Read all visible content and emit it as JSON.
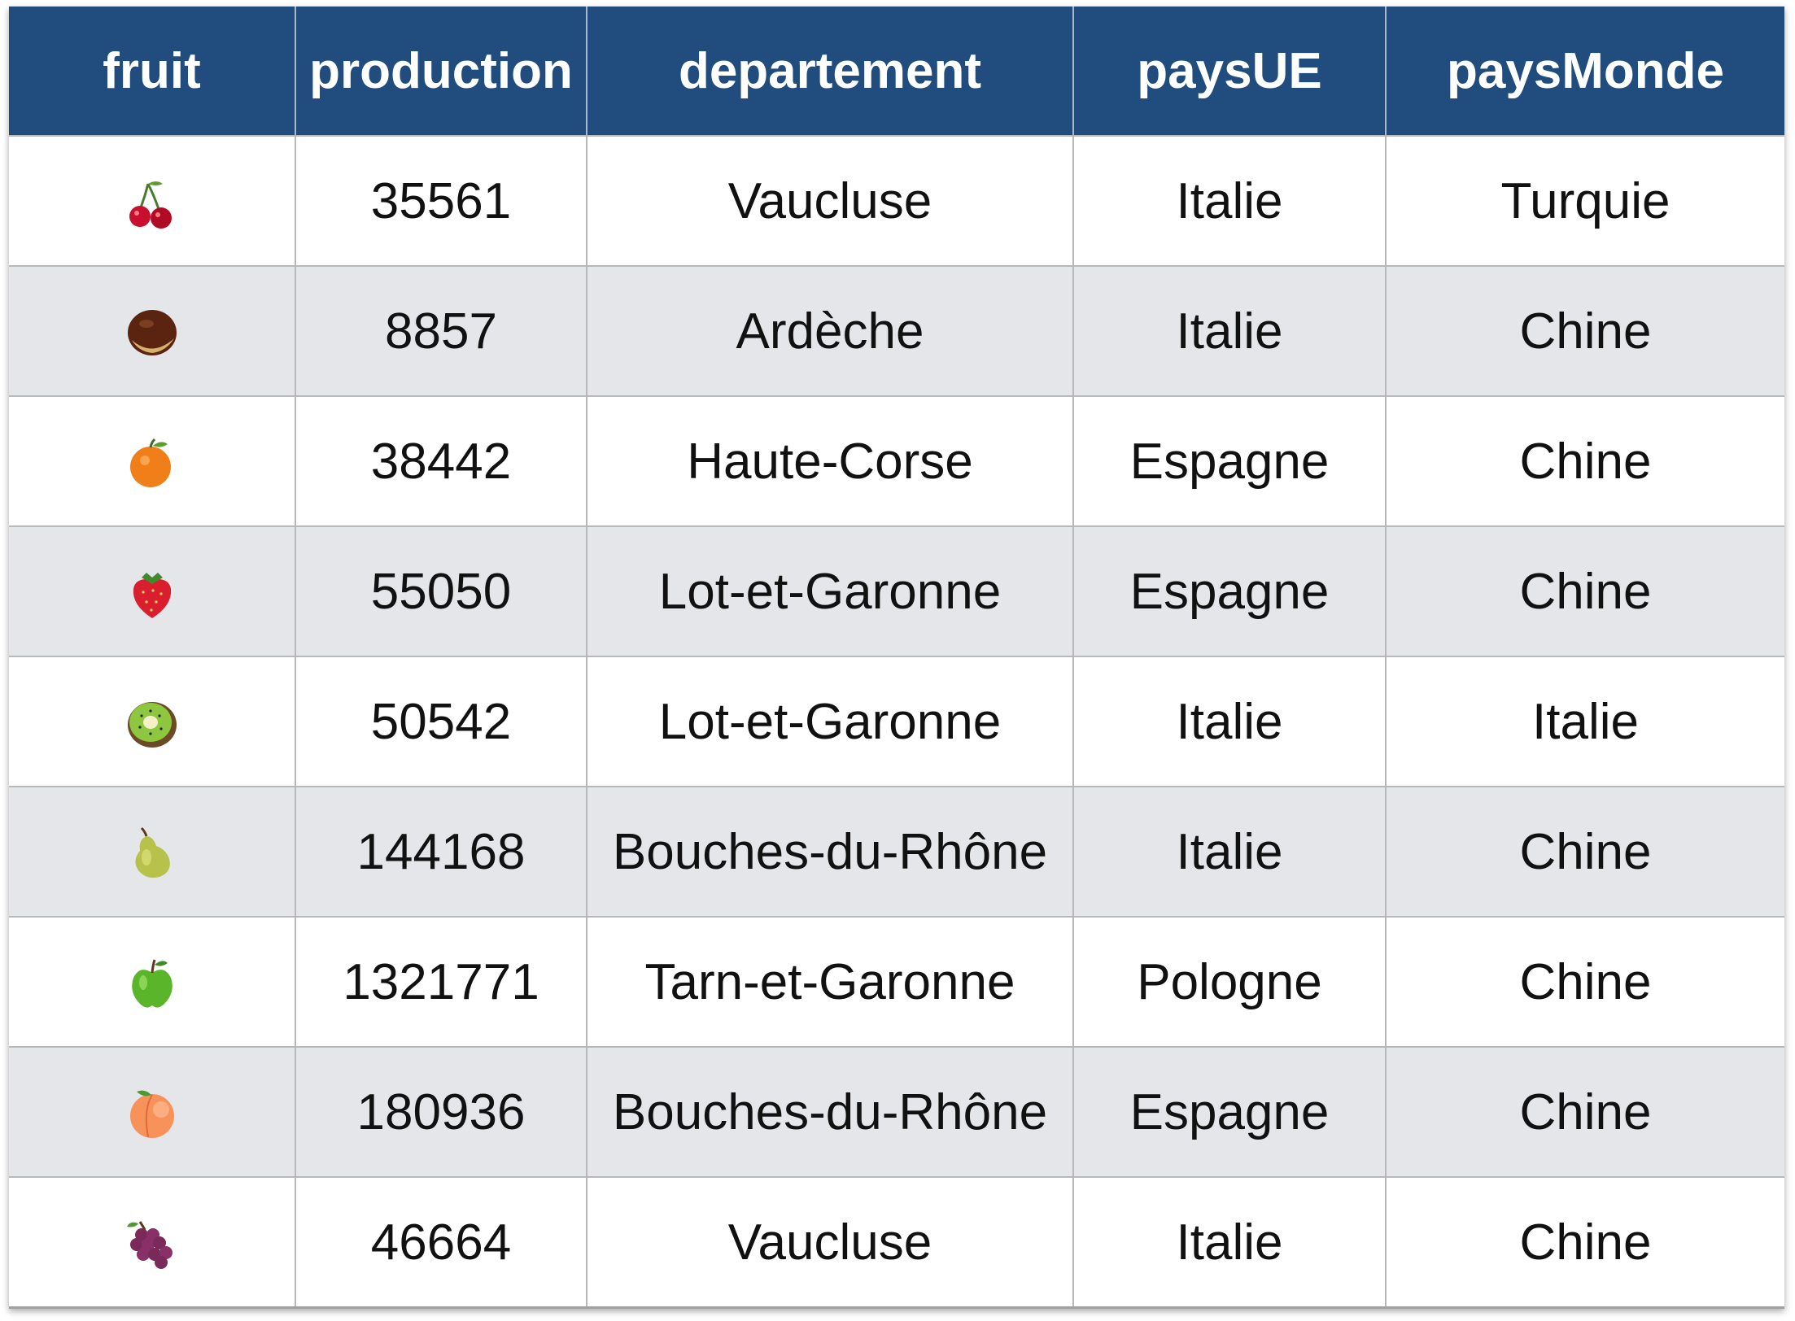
{
  "table": {
    "headers": [
      "fruit",
      "production",
      "departement",
      "paysUE",
      "paysMonde"
    ],
    "rows": [
      {
        "fruit": "cherry-icon",
        "production": "35561",
        "departement": "Vaucluse",
        "paysUE": "Italie",
        "paysMonde": "Turquie"
      },
      {
        "fruit": "chestnut-icon",
        "production": "8857",
        "departement": "Ardèche",
        "paysUE": "Italie",
        "paysMonde": "Chine"
      },
      {
        "fruit": "orange-icon",
        "production": "38442",
        "departement": "Haute-Corse",
        "paysUE": "Espagne",
        "paysMonde": "Chine"
      },
      {
        "fruit": "strawberry-icon",
        "production": "55050",
        "departement": "Lot-et-Garonne",
        "paysUE": "Espagne",
        "paysMonde": "Chine"
      },
      {
        "fruit": "kiwi-icon",
        "production": "50542",
        "departement": "Lot-et-Garonne",
        "paysUE": "Italie",
        "paysMonde": "Italie"
      },
      {
        "fruit": "pear-icon",
        "production": "144168",
        "departement": "Bouches-du-Rhône",
        "paysUE": "Italie",
        "paysMonde": "Chine"
      },
      {
        "fruit": "green-apple-icon",
        "production": "1321771",
        "departement": "Tarn-et-Garonne",
        "paysUE": "Pologne",
        "paysMonde": "Chine"
      },
      {
        "fruit": "peach-icon",
        "production": "180936",
        "departement": "Bouches-du-Rhône",
        "paysUE": "Espagne",
        "paysMonde": "Chine"
      },
      {
        "fruit": "grapes-icon",
        "production": "46664",
        "departement": "Vaucluse",
        "paysUE": "Italie",
        "paysMonde": "Chine"
      }
    ]
  },
  "colors": {
    "header_bg": "#214c7e",
    "header_text": "#ffffff",
    "row_alt_bg": "#e5e6ea",
    "row_bg": "#ffffff"
  }
}
